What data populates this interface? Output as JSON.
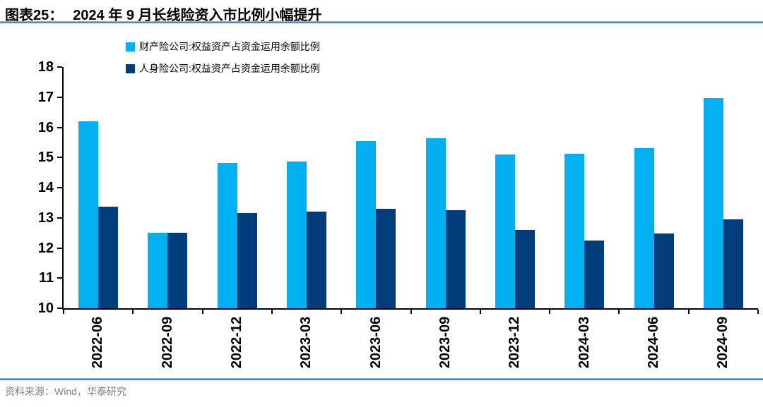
{
  "header": {
    "label": "图表25：",
    "title": "2024 年 9 月长线险资入市比例小幅提升"
  },
  "footer": {
    "source": "资料来源：Wind，华泰研究"
  },
  "chart_data": {
    "type": "bar",
    "title": "2024 年 9 月长线险资入市比例小幅提升",
    "categories": [
      "2022-06",
      "2022-09",
      "2022-12",
      "2023-03",
      "2023-06",
      "2023-09",
      "2023-12",
      "2024-03",
      "2024-06",
      "2024-09"
    ],
    "series": [
      {
        "name": "财产险公司:权益资产占资金运用余额比例",
        "color": "#00B0F0",
        "values": [
          16.2,
          12.5,
          14.82,
          14.87,
          15.55,
          15.64,
          15.1,
          15.12,
          15.32,
          16.97
        ]
      },
      {
        "name": "人身险公司:权益资产占资金运用余额比例",
        "color": "#003D7A",
        "values": [
          13.38,
          12.5,
          13.15,
          13.2,
          13.3,
          13.25,
          12.6,
          12.25,
          12.48,
          12.95
        ]
      }
    ],
    "ylim": [
      10,
      18
    ],
    "y_ticks": [
      10,
      11,
      12,
      13,
      14,
      15,
      16,
      17,
      18
    ],
    "grid": false,
    "legend_position": "top-left",
    "xlabel": "",
    "ylabel": ""
  },
  "style": {
    "accent_rule_light": "#A9C3DC",
    "accent_rule_dark": "#2F5F93",
    "axis_color": "#000000",
    "source_text_color": "#7F7F7F"
  }
}
